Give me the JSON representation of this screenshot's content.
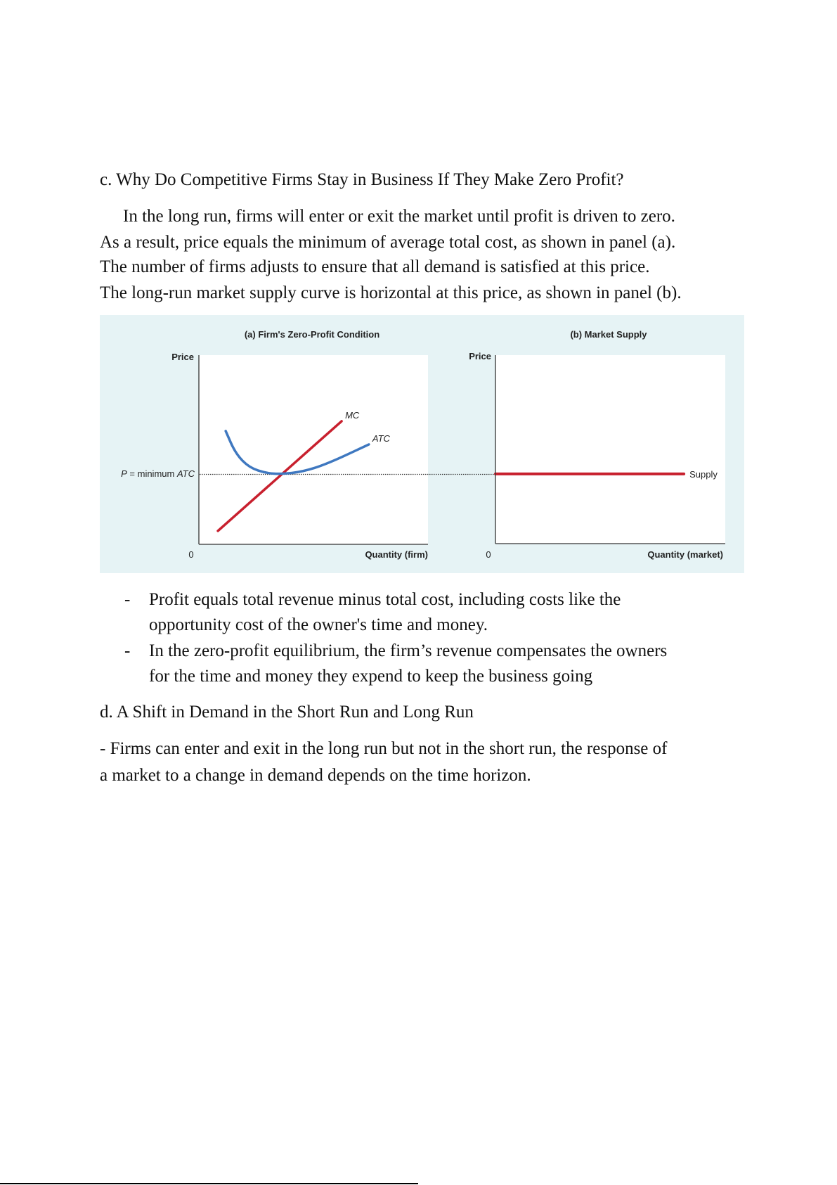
{
  "section_c": {
    "heading": "c. Why Do Competitive Firms Stay in Business If They Make Zero Profit?",
    "paragraph": [
      "In the long run, firms will enter or exit the market until profit is driven to zero.",
      "As a result, price equals the minimum of average total cost, as shown in panel (a).",
      "The number of firms adjusts to ensure that all demand is satisfied at this price.",
      "The long-run market supply curve is horizontal at this price, as shown in panel (b)."
    ],
    "bullets": [
      {
        "marker": "-",
        "lines": [
          "Profit equals total revenue minus total cost, including costs like the",
          "opportunity cost of the owner's time and money."
        ]
      },
      {
        "marker": "-",
        "lines": [
          "In the zero-profit equilibrium, the firm’s revenue compensates the owners",
          "for the time and money they expend to keep the business going"
        ]
      }
    ]
  },
  "section_d": {
    "heading": "d. A Shift in Demand in the Short Run and Long Run",
    "paragraph": [
      "- Firms can enter and exit in the long run but not in the short run, the response of",
      "a market to a change in demand depends on the time horizon."
    ]
  },
  "colors": {
    "chart_background": "#e6f3f5",
    "mc": "#c8202e",
    "atc": "#3f78c0",
    "supply": "#c8202e"
  },
  "chart_data": [
    {
      "type": "line",
      "title": "(a) Firm's Zero-Profit Condition",
      "xlabel": "Quantity (firm)",
      "ylabel": "Price",
      "origin_label": "0",
      "reference_line": {
        "label_prefix": "P",
        "label_rest": " = minimum ",
        "label_italic": "ATC",
        "y": 3.7,
        "style": "dotted"
      },
      "xlim": [
        0,
        10
      ],
      "ylim": [
        0,
        10
      ],
      "grid": false,
      "series": [
        {
          "name": "MC",
          "points": [
            [
              0.83,
              0.71
            ],
            [
              6.23,
              6.51
            ]
          ]
        },
        {
          "name": "ATC",
          "points": [
            [
              1.17,
              5.99
            ],
            [
              1.6,
              4.8
            ],
            [
              2.2,
              4.05
            ],
            [
              2.98,
              3.75
            ],
            [
              3.62,
              3.72
            ],
            [
              4.5,
              3.83
            ],
            [
              5.58,
              4.24
            ],
            [
              7.42,
              5.28
            ]
          ]
        }
      ]
    },
    {
      "type": "line",
      "title": "(b) Market Supply",
      "xlabel": "Quantity (market)",
      "ylabel": "Price",
      "origin_label": "0",
      "xlim": [
        0,
        10
      ],
      "ylim": [
        0,
        10
      ],
      "grid": false,
      "series": [
        {
          "name": "Supply",
          "points": [
            [
              0,
              3.7
            ],
            [
              8.2,
              3.7
            ]
          ]
        }
      ]
    }
  ]
}
